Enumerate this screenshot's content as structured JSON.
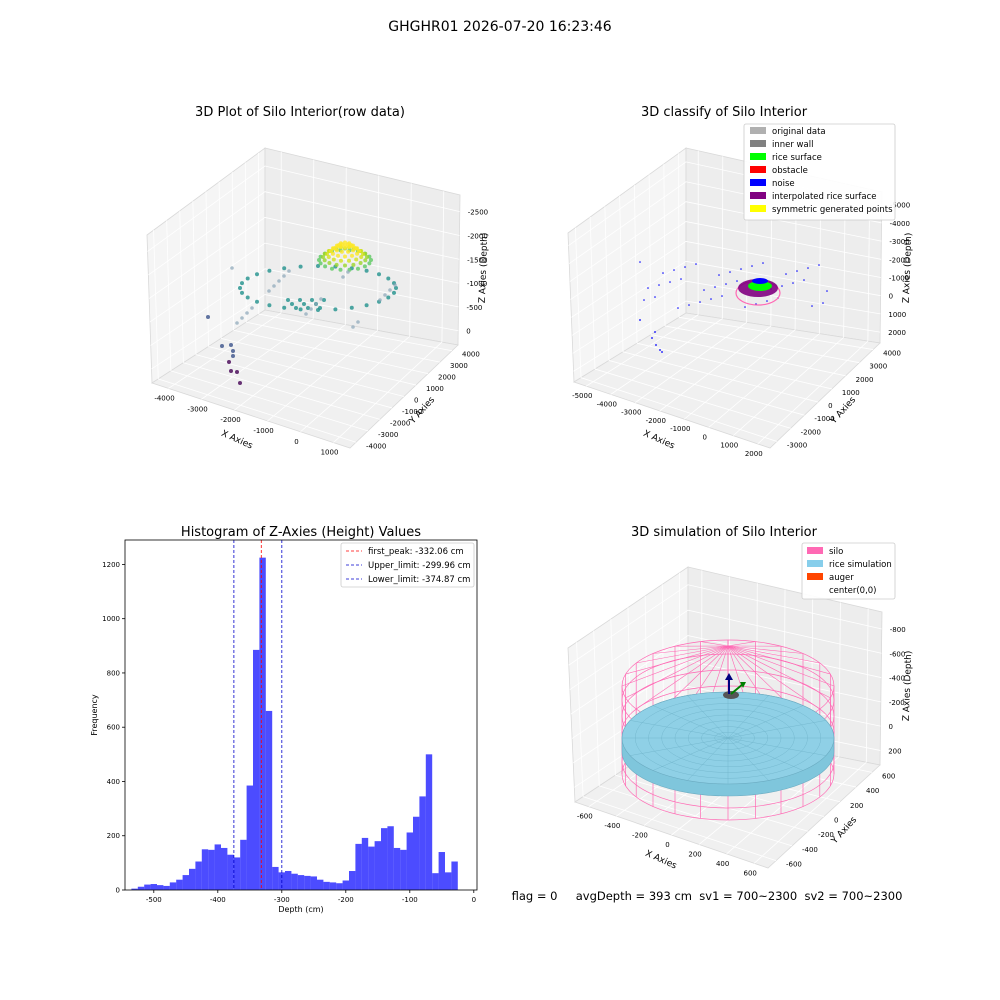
{
  "suptitle": "GHGHR01 2026-07-20 16:23:46",
  "status_text": "flag = 0     avgDepth = 393 cm  sv1 = 700~2300  sv2 = 700~2300",
  "colors": {
    "hist_bar": "#0000ff",
    "first_peak": "#ff0000",
    "limits": "#0000cc",
    "silo": "#ff69b4",
    "rice_simulation": "#87ceeb",
    "auger": "#ff4500"
  },
  "chart_data": [
    {
      "type": "scatter",
      "title": "3D Plot of Silo Interior(row data)",
      "xlabel": "X Axies",
      "ylabel": "Y Axies",
      "zlabel": "Z Axies (Depth)",
      "xticks": [
        "-4000",
        "-3000",
        "-2000",
        "-1000",
        "0",
        "1000"
      ],
      "yticks": [
        "-4000",
        "-3000",
        "-2000",
        "-1000",
        "0",
        "1000",
        "2000",
        "3000",
        "4000"
      ],
      "zticks": [
        "0",
        "-500",
        "-1000",
        "-1500",
        "-2000",
        "-2500"
      ],
      "colormap": "viridis"
    },
    {
      "type": "scatter",
      "title": "3D classify of Silo Interior",
      "xlabel": "X Axies",
      "ylabel": "Y Axies",
      "zlabel": "Z Axies (Depth)",
      "xticks": [
        "-5000",
        "-4000",
        "-3000",
        "-2000",
        "-1000",
        "0",
        "1000",
        "2000"
      ],
      "yticks": [
        "-3000",
        "-2000",
        "-1000",
        "0",
        "1000",
        "2000",
        "3000",
        "4000"
      ],
      "zticks": [
        "2000",
        "1000",
        "0",
        "-1000",
        "-2000",
        "-3000",
        "-4000",
        "-5000"
      ],
      "legend_position": "top-right",
      "legend": [
        {
          "label": "original data",
          "color": "#b0b0b0"
        },
        {
          "label": "inner wall",
          "color": "#808080"
        },
        {
          "label": "rice surface",
          "color": "#00ff00"
        },
        {
          "label": "obstacle",
          "color": "#ff0000"
        },
        {
          "label": "noise",
          "color": "#0000ff"
        },
        {
          "label": "interpolated rice surface",
          "color": "#800080"
        },
        {
          "label": "symmetric generated points",
          "color": "#ffff00"
        }
      ]
    },
    {
      "type": "bar",
      "title": "Histogram of Z-Axies (Height) Values",
      "xlabel": "Depth (cm)",
      "ylabel": "Frequency",
      "xlim": [
        -545,
        5
      ],
      "ylim": [
        0,
        1290
      ],
      "xticks": [
        -500,
        -400,
        -300,
        -200,
        -100,
        0
      ],
      "yticks": [
        0,
        200,
        400,
        600,
        800,
        1000,
        1200
      ],
      "bin_width": 10,
      "bins_start": [
        -535,
        -525,
        -515,
        -505,
        -495,
        -485,
        -475,
        -465,
        -455,
        -445,
        -435,
        -425,
        -415,
        -405,
        -395,
        -385,
        -375,
        -365,
        -355,
        -345,
        -335,
        -325,
        -315,
        -305,
        -295,
        -285,
        -275,
        -265,
        -255,
        -245,
        -235,
        -225,
        -215,
        -205,
        -195,
        -185,
        -175,
        -165,
        -155,
        -145,
        -135,
        -125,
        -115,
        -105,
        -95,
        -85,
        -75,
        -65,
        -55,
        -45,
        -35,
        -25,
        -15,
        -5
      ],
      "values": [
        5,
        12,
        20,
        22,
        18,
        15,
        28,
        38,
        55,
        78,
        105,
        150,
        148,
        168,
        155,
        130,
        120,
        185,
        385,
        885,
        1225,
        660,
        85,
        65,
        70,
        60,
        55,
        52,
        50,
        38,
        30,
        28,
        25,
        35,
        70,
        170,
        192,
        160,
        180,
        228,
        235,
        155,
        148,
        212,
        270,
        345,
        500,
        62,
        140,
        65,
        105,
        0,
        0,
        0
      ],
      "lines": [
        {
          "label": "first_peak: -332.06 cm",
          "x": -332.06,
          "color": "#ff0000"
        },
        {
          "label": "Upper_limit: -299.96 cm",
          "x": -299.96,
          "color": "#0000cc"
        },
        {
          "label": "Lower_limit: -374.87 cm",
          "x": -374.87,
          "color": "#0000cc"
        }
      ],
      "legend_position": "top-right"
    },
    {
      "type": "scatter",
      "title": "3D simulation of Silo Interior",
      "xlabel": "X Axies",
      "ylabel": "Y Axies",
      "zlabel": "Z Axies (Depth)",
      "xticks": [
        "-600",
        "-400",
        "-200",
        "0",
        "200",
        "400",
        "600"
      ],
      "yticks": [
        "-600",
        "-400",
        "-200",
        "0",
        "200",
        "400",
        "600"
      ],
      "zticks": [
        "200",
        "0",
        "-200",
        "-400",
        "-600",
        "-800"
      ],
      "legend_position": "top-right",
      "legend": [
        {
          "label": "silo",
          "color": "#ff69b4"
        },
        {
          "label": "rice simulation",
          "color": "#87ceeb"
        },
        {
          "label": "auger",
          "color": "#ff4500"
        },
        {
          "label": "center(0,0)",
          "color": ""
        }
      ]
    }
  ]
}
